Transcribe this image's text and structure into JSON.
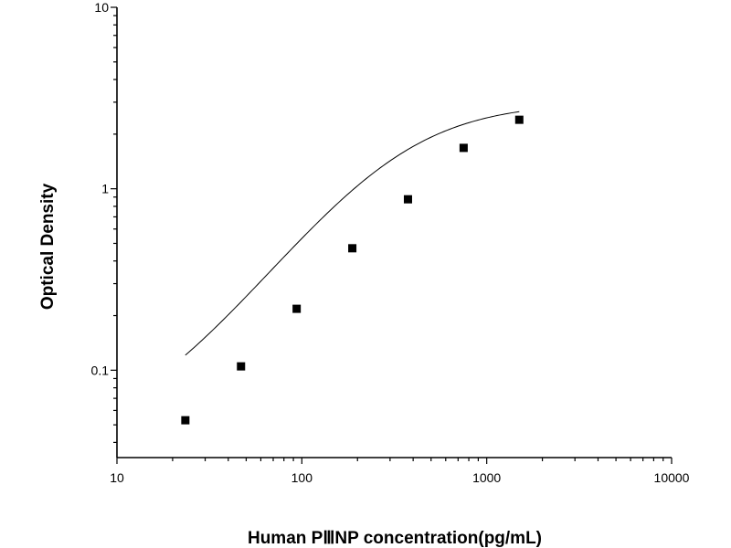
{
  "chart_data": {
    "type": "scatter",
    "xlabel": "Human PⅢNP concentration(pg/mL)",
    "ylabel": "Optical Density",
    "x_scale": "log",
    "y_scale": "log",
    "xlim": [
      10,
      10000
    ],
    "ylim": [
      0.033,
      10
    ],
    "x_ticks": [
      {
        "value": 10,
        "label": "10"
      },
      {
        "value": 100,
        "label": "100"
      },
      {
        "value": 1000,
        "label": "1000"
      },
      {
        "value": 10000,
        "label": "10000"
      }
    ],
    "y_ticks": [
      {
        "value": 0.1,
        "label": "0.1"
      },
      {
        "value": 1,
        "label": "1"
      },
      {
        "value": 10,
        "label": "10"
      }
    ],
    "grid": false,
    "series": [
      {
        "points": [
          {
            "x": 23.44,
            "y": 0.053
          },
          {
            "x": 46.88,
            "y": 0.105
          },
          {
            "x": 93.75,
            "y": 0.218
          },
          {
            "x": 187.5,
            "y": 0.47
          },
          {
            "x": 375,
            "y": 0.875
          },
          {
            "x": 750,
            "y": 1.68
          },
          {
            "x": 1500,
            "y": 2.4
          }
        ]
      }
    ],
    "fit_curve": {
      "model": "four-parameter logistic",
      "params": {
        "A": 0.04,
        "B": 1.35,
        "C": 330,
        "D": 3.0
      },
      "x_range": [
        23.44,
        1500
      ]
    }
  }
}
